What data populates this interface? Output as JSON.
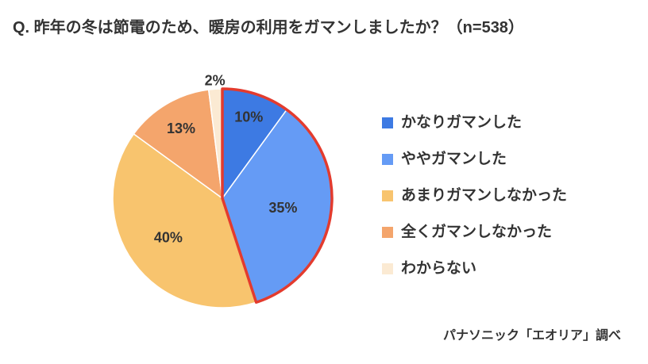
{
  "chart_data": {
    "type": "pie",
    "title": "Q. 昨年の冬は節電のため、暖房の利用をガマンしましたか？（n=538）",
    "categories": [
      "かなりガマンした",
      "ややガマンした",
      "あまりガマンしなかった",
      "全くガマンしなかった",
      "わからない"
    ],
    "values": [
      10,
      35,
      40,
      13,
      2
    ],
    "value_labels": [
      "10%",
      "35%",
      "40%",
      "13%",
      "2%"
    ],
    "colors": [
      "#3d7ae3",
      "#659bf5",
      "#f8c46e",
      "#f4a56c",
      "#fbead3"
    ],
    "highlight_indices": [
      0,
      1
    ],
    "highlight_color": "#e33b2e",
    "legend_position": "right",
    "source": "パナソニック「エオリア」調べ"
  }
}
